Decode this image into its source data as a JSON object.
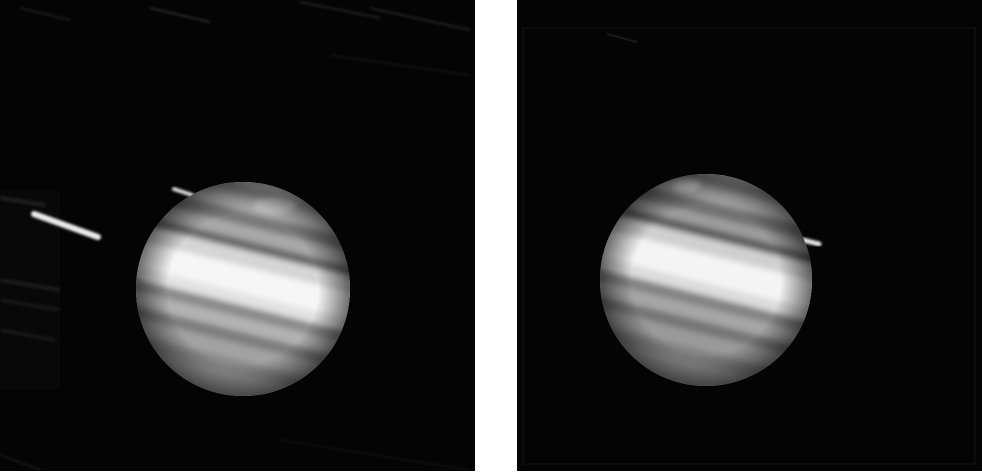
{
  "images": [
    {
      "label": "",
      "subject": "planet-with-bright-equatorial-band",
      "moons_visible": 2,
      "tone": "grayscale"
    },
    {
      "label": "",
      "subject": "planet-with-bright-equatorial-band",
      "moons_visible": 1,
      "tone": "grayscale"
    }
  ],
  "colors": {
    "background": "#ffffff",
    "sky": "#040404",
    "band_bright": "#f4f4f4",
    "band_dark": "#5a5a5a"
  }
}
